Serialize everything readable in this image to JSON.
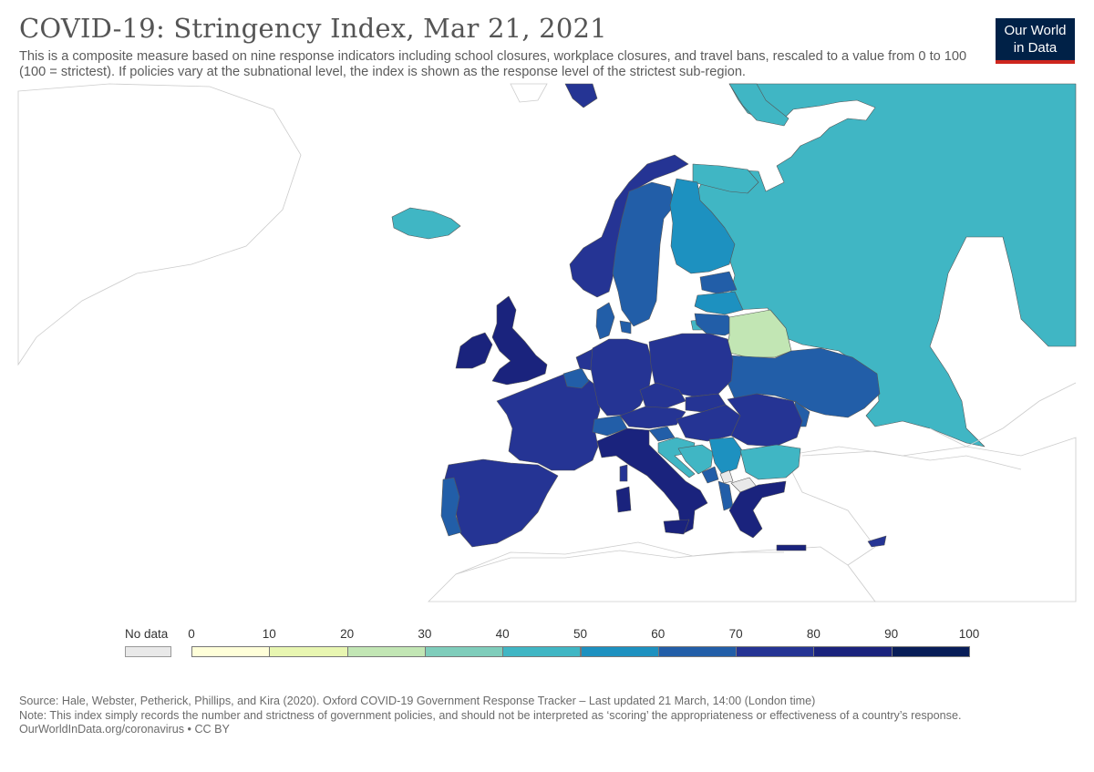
{
  "title": "COVID-19: Stringency Index, Mar 21, 2021",
  "subtitle": "This is a composite measure based on nine response indicators including school closures, workplace closures, and travel bans, rescaled to a value from 0 to 100 (100 = strictest). If policies vary at the subnational level, the index is shown as the response level of the strictest sub-region.",
  "logo": {
    "line1": "Our World",
    "line2": "in Data",
    "bg": "#002147",
    "accent": "#ce261e"
  },
  "legend": {
    "nodata_label": "No data",
    "nodata_color": "#e9e9e9",
    "ticks": [
      "0",
      "10",
      "20",
      "30",
      "40",
      "50",
      "60",
      "70",
      "80",
      "90",
      "100"
    ],
    "colors": [
      "#ffffd9",
      "#e8f6b1",
      "#c2e6b4",
      "#7fcdbb",
      "#40b6c4",
      "#1d91c0",
      "#225ea8",
      "#253494",
      "#1a237d",
      "#081d58"
    ]
  },
  "chart_data": {
    "type": "choropleth",
    "region": "Europe",
    "metric": "Stringency Index",
    "date": "Mar 21, 2021",
    "scale": [
      0,
      100
    ],
    "countries": [
      {
        "name": "Russia",
        "value": 45
      },
      {
        "name": "Iceland",
        "value": 45
      },
      {
        "name": "Norway",
        "value": 75
      },
      {
        "name": "Sweden",
        "value": 65
      },
      {
        "name": "Finland",
        "value": 55
      },
      {
        "name": "Estonia",
        "value": 65
      },
      {
        "name": "Latvia",
        "value": 55
      },
      {
        "name": "Lithuania",
        "value": 65
      },
      {
        "name": "Belarus",
        "value": 25
      },
      {
        "name": "Ukraine",
        "value": 65
      },
      {
        "name": "Moldova",
        "value": 65
      },
      {
        "name": "Denmark",
        "value": 65
      },
      {
        "name": "United Kingdom",
        "value": 88
      },
      {
        "name": "Ireland",
        "value": 85
      },
      {
        "name": "Netherlands",
        "value": 75
      },
      {
        "name": "Belgium",
        "value": 65
      },
      {
        "name": "Luxembourg",
        "value": 65
      },
      {
        "name": "France",
        "value": 75
      },
      {
        "name": "Switzerland",
        "value": 65
      },
      {
        "name": "Germany",
        "value": 75
      },
      {
        "name": "Poland",
        "value": 75
      },
      {
        "name": "Czechia",
        "value": 78
      },
      {
        "name": "Slovakia",
        "value": 75
      },
      {
        "name": "Austria",
        "value": 75
      },
      {
        "name": "Hungary",
        "value": 75
      },
      {
        "name": "Romania",
        "value": 75
      },
      {
        "name": "Italy",
        "value": 85
      },
      {
        "name": "Slovenia",
        "value": 65
      },
      {
        "name": "Croatia",
        "value": 45
      },
      {
        "name": "Bosnia and Herzegovina",
        "value": 45
      },
      {
        "name": "Serbia",
        "value": 55
      },
      {
        "name": "Montenegro",
        "value": 65
      },
      {
        "name": "Albania",
        "value": 65
      },
      {
        "name": "Bulgaria",
        "value": 45
      },
      {
        "name": "Greece",
        "value": 85
      },
      {
        "name": "Spain",
        "value": 75
      },
      {
        "name": "Portugal",
        "value": 65
      },
      {
        "name": "Cyprus",
        "value": 75
      }
    ]
  },
  "footer": {
    "source": "Source: Hale, Webster, Petherick, Phillips, and Kira (2020). Oxford COVID-19 Government Response Tracker – Last updated 21 March, 14:00 (London time)",
    "note": "Note: This index simply records the number and strictness of government policies, and should not be interpreted as ‘scoring’ the appropriateness or effectiveness of a country’s response.",
    "link": "OurWorldInData.org/coronavirus • CC BY"
  }
}
